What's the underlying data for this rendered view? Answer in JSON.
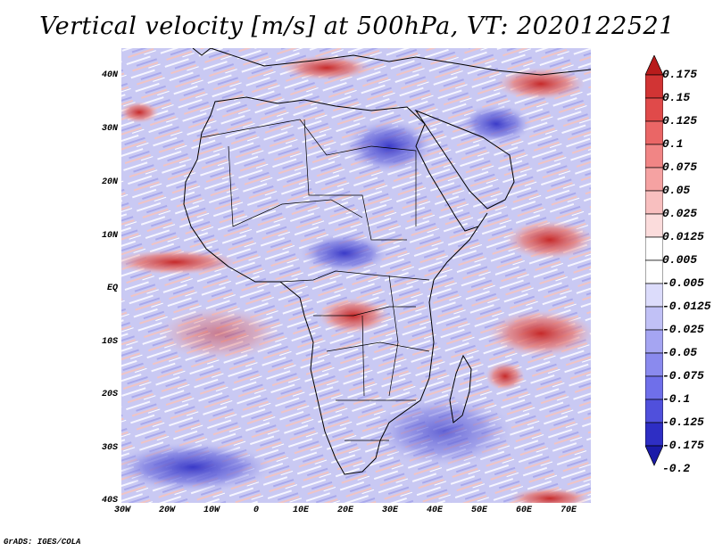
{
  "title": "Vertical velocity [m/s] at 500hPa, VT: 2020122521",
  "footer": "GrADS: IGES/COLA",
  "map": {
    "lat_labels": [
      "40N",
      "30N",
      "20N",
      "10N",
      "EQ",
      "10S",
      "20S",
      "30S",
      "40S"
    ],
    "lon_labels": [
      "30W",
      "20W",
      "10W",
      "0",
      "10E",
      "20E",
      "30E",
      "40E",
      "50E",
      "60E",
      "70E"
    ],
    "lon_range": [
      -30,
      75
    ],
    "lat_range": [
      -40,
      45
    ]
  },
  "colorbar": {
    "labels": [
      "0.175",
      "0.15",
      "0.125",
      "0.1",
      "0.075",
      "0.05",
      "0.025",
      "0.0125",
      "0.005",
      "-0.005",
      "-0.0125",
      "-0.025",
      "-0.05",
      "-0.075",
      "-0.1",
      "-0.125",
      "-0.175",
      "-0.2"
    ],
    "colors": [
      "#b81c1c",
      "#d13434",
      "#e04a4a",
      "#ea6666",
      "#f18585",
      "#f5a2a2",
      "#f8bfbf",
      "#fbdcdc",
      "#ffffff",
      "#ffffff",
      "#dcdcfb",
      "#c1c1f6",
      "#a5a5f2",
      "#8a8aee",
      "#6f6fea",
      "#5050dc",
      "#2e2ec4",
      "#1a1aa8"
    ]
  }
}
